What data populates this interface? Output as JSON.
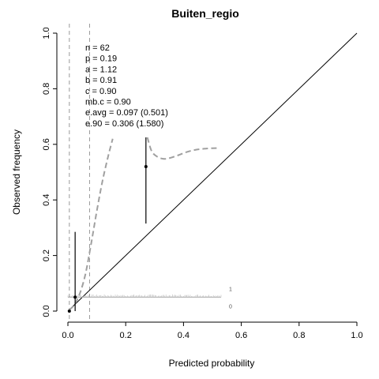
{
  "chart_data": {
    "type": "line",
    "title": "Buiten_regio",
    "xlabel": "Predicted probability",
    "ylabel": "Observed frequency",
    "xlim": [
      0,
      1
    ],
    "ylim": [
      0,
      1
    ],
    "x_ticks": [
      "0.0",
      "0.2",
      "0.4",
      "0.6",
      "0.8",
      "1.0"
    ],
    "y_ticks": [
      "0.0",
      "0.2",
      "0.4",
      "0.6",
      "0.8",
      "1.0"
    ],
    "stats": [
      "n = 62",
      "p = 0.19",
      "a = 1.12",
      "b = 0.91",
      "c = 0.90",
      "mb.c = 0.90",
      "e.avg = 0.097 (0.501)",
      "e.90 = 0.306 (1.580)"
    ],
    "reference_line": {
      "x": [
        0,
        1
      ],
      "y": [
        0,
        1
      ]
    },
    "calibration_curve": {
      "segment_1": {
        "x": [
          0.005,
          0.02,
          0.04,
          0.06,
          0.08,
          0.1,
          0.12,
          0.14,
          0.155
        ],
        "y": [
          0.005,
          0.02,
          0.06,
          0.13,
          0.24,
          0.36,
          0.47,
          0.56,
          0.62
        ]
      },
      "segment_2": {
        "x": [
          0.275,
          0.29,
          0.31,
          0.33,
          0.35,
          0.38,
          0.41,
          0.44,
          0.47,
          0.5,
          0.525
        ],
        "y": [
          0.625,
          0.575,
          0.555,
          0.548,
          0.55,
          0.56,
          0.572,
          0.58,
          0.584,
          0.586,
          0.586
        ]
      }
    },
    "grouped_points": [
      {
        "x": 0.005,
        "y": 0.0,
        "lower": 0.0,
        "upper": 0.0
      },
      {
        "x": 0.025,
        "y": 0.05,
        "lower": 0.0,
        "upper": 0.285
      },
      {
        "x": 0.27,
        "y": 0.52,
        "lower": 0.315,
        "upper": 0.625
      }
    ],
    "vertical_dashed_lines_x": [
      0.005,
      0.075
    ],
    "rug": {
      "baseline_y": 0.05,
      "x_range": [
        0.0,
        0.53
      ],
      "labels": [
        "1",
        "0"
      ]
    }
  }
}
